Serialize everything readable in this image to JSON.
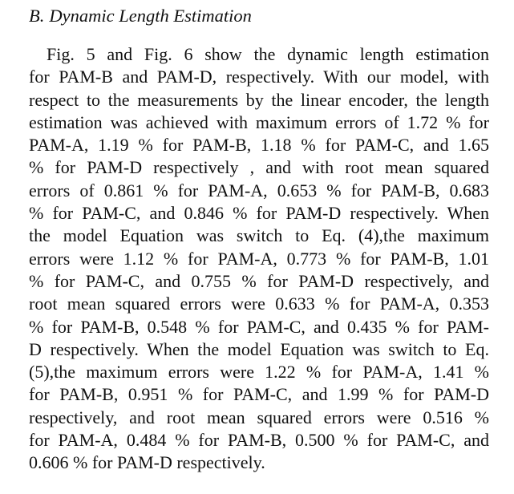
{
  "section": {
    "label": "B.",
    "title": "Dynamic Length Estimation"
  },
  "paragraph": {
    "lines": [
      "Fig. 5 and Fig. 6 show the dynamic length estimation",
      "for PAM-B and PAM-D, respectively. With our model, with",
      "respect to the measurements by the linear encoder, the length",
      "estimation was achieved with maximum errors of 1.72 % for",
      "PAM-A, 1.19 % for PAM-B, 1.18 % for PAM-C, and 1.65",
      "% for PAM-D respectively , and with root mean squared",
      "errors of 0.861 % for PAM-A, 0.653 % for PAM-B, 0.683",
      "% for PAM-C, and 0.846 % for PAM-D respectively. When",
      "the model Equation was switch to Eq. (4),the maximum",
      "errors were 1.12 % for PAM-A, 0.773 % for PAM-B, 1.01",
      "% for PAM-C, and 0.755 % for PAM-D respectively, and",
      "root mean squared errors were 0.633 % for PAM-A, 0.353",
      "% for PAM-B, 0.548 % for PAM-C, and 0.435 % for PAM-",
      "D respectively. When the model Equation was switch to Eq.",
      "(5),the maximum errors were 1.22 % for PAM-A, 1.41 %",
      "for PAM-B, 0.951 % for PAM-C, and 1.99 % for PAM-D",
      "respectively, and root mean squared errors were 0.516 %",
      "for PAM-A, 0.484 % for PAM-B, 0.500 % for PAM-C, and",
      "0.606 % for PAM-D respectively."
    ]
  }
}
